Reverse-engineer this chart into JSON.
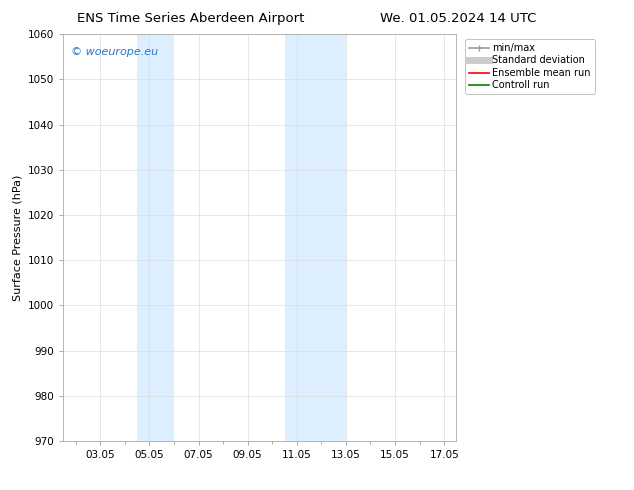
{
  "title_left": "ENS Time Series Aberdeen Airport",
  "title_right": "We. 01.05.2024 14 UTC",
  "ylabel": "Surface Pressure (hPa)",
  "ylim": [
    970,
    1060
  ],
  "yticks": [
    970,
    980,
    990,
    1000,
    1010,
    1020,
    1030,
    1040,
    1050,
    1060
  ],
  "xlim_start": 1.5,
  "xlim_end": 17.5,
  "xtick_labels": [
    "03.05",
    "05.05",
    "07.05",
    "09.05",
    "11.05",
    "13.05",
    "15.05",
    "17.05"
  ],
  "xtick_positions": [
    3.0,
    5.0,
    7.0,
    9.0,
    11.0,
    13.0,
    15.0,
    17.0
  ],
  "shaded_bands": [
    {
      "x_start": 4.5,
      "x_end": 6.0,
      "color": "#ddeeff"
    },
    {
      "x_start": 10.5,
      "x_end": 13.0,
      "color": "#ddeeff"
    }
  ],
  "watermark_text": "© woeurope.eu",
  "watermark_color": "#2277cc",
  "legend_entries": [
    {
      "label": "min/max",
      "color": "#999999",
      "lw": 1.2,
      "style": "line_with_cap"
    },
    {
      "label": "Standard deviation",
      "color": "#cccccc",
      "lw": 5,
      "style": "line"
    },
    {
      "label": "Ensemble mean run",
      "color": "red",
      "lw": 1.2,
      "style": "line"
    },
    {
      "label": "Controll run",
      "color": "green",
      "lw": 1.2,
      "style": "line"
    }
  ],
  "bg_color": "#ffffff",
  "grid_color": "#dddddd",
  "title_fontsize": 9.5,
  "label_fontsize": 8,
  "tick_fontsize": 7.5,
  "legend_fontsize": 7,
  "watermark_fontsize": 8
}
